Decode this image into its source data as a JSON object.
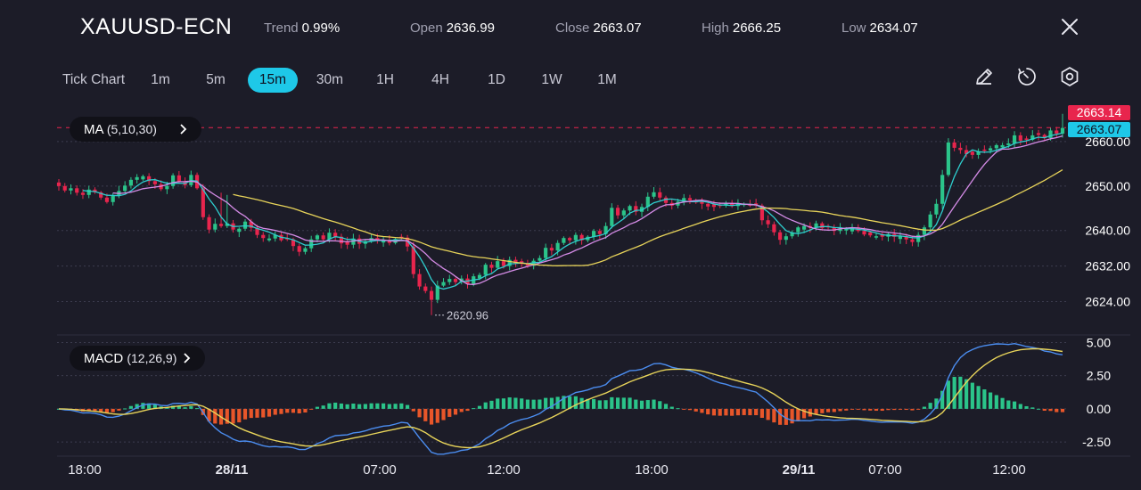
{
  "header": {
    "symbol": "XAUUSD-ECN",
    "stats": [
      {
        "label": "Trend",
        "value": "0.99%"
      },
      {
        "label": "Open",
        "value": "2636.99"
      },
      {
        "label": "Close",
        "value": "2663.07"
      },
      {
        "label": "High",
        "value": "2666.25"
      },
      {
        "label": "Low",
        "value": "2634.07"
      }
    ],
    "close_icon": "close-icon"
  },
  "timeframes": {
    "items": [
      "Tick Chart",
      "1m",
      "5m",
      "15m",
      "30m",
      "1H",
      "4H",
      "1D",
      "1W",
      "1M"
    ],
    "selected": "15m"
  },
  "toolbar": {
    "icons": [
      "pencil-icon",
      "timer-icon",
      "settings-icon"
    ]
  },
  "indicators": {
    "ma": {
      "name": "MA",
      "params": "(5,10,30)"
    },
    "macd": {
      "name": "MACD",
      "params": "(12,26,9)"
    }
  },
  "price_tags": {
    "current_high": "2663.14",
    "current_close": "2663.07",
    "low_marker": "2620.96"
  },
  "colors": {
    "background": "#1c1c28",
    "up": "#2bc48a",
    "down": "#e8254d",
    "accent": "#1ec8e8",
    "ma5": "#2ecfcf",
    "ma10": "#d48be6",
    "ma30": "#e8d45a",
    "macd_line": "#4b8df0",
    "signal_line": "#e8d45a",
    "hist_pos": "#2bc48a",
    "hist_neg": "#e8562a"
  },
  "chart_data": [
    {
      "type": "candlestick",
      "title": "XAUUSD-ECN",
      "xlabel": "",
      "ylabel": "",
      "x_tick_labels": [
        "18:00",
        "28/11",
        "07:00",
        "12:00",
        "18:00",
        "29/11",
        "07:00",
        "12:00"
      ],
      "y_ticks": [
        2624.0,
        2632.0,
        2640.0,
        2650.0,
        2660.0
      ],
      "y_tick_labels": [
        "2624.00",
        "2632.00",
        "2640.00",
        "2650.00",
        "2660.00"
      ],
      "ylim": [
        2618.5,
        2668.2
      ],
      "grid": true,
      "series_ma": [
        {
          "name": "MA5",
          "period": 5
        },
        {
          "name": "MA10",
          "period": 10
        },
        {
          "name": "MA30",
          "period": 30
        }
      ],
      "closes": [
        2650.0,
        2649.0,
        2649.5,
        2648.5,
        2648.0,
        2649.2,
        2648.6,
        2647.4,
        2646.4,
        2647.8,
        2648.9,
        2650.1,
        2651.4,
        2652.0,
        2652.2,
        2651.1,
        2650.4,
        2649.3,
        2650.0,
        2652.4,
        2651.0,
        2650.2,
        2652.5,
        2649.5,
        2643.0,
        2640.2,
        2641.5,
        2641.0,
        2641.6,
        2640.2,
        2640.4,
        2642.0,
        2640.6,
        2639.0,
        2638.3,
        2638.2,
        2639.0,
        2637.8,
        2638.0,
        2636.5,
        2635.2,
        2636.0,
        2638.0,
        2638.9,
        2638.0,
        2639.5,
        2638.6,
        2637.1,
        2636.8,
        2638.2,
        2637.0,
        2637.6,
        2638.3,
        2637.8,
        2637.9,
        2637.2,
        2638.1,
        2638.4,
        2636.4,
        2630.2,
        2627.4,
        2626.4,
        2624.4,
        2627.6,
        2628.4,
        2629.1,
        2628.4,
        2629.2,
        2628.0,
        2629.7,
        2630.0,
        2632.3,
        2631.6,
        2633.1,
        2632.0,
        2633.4,
        2632.6,
        2632.5,
        2632.1,
        2633.2,
        2633.8,
        2636.1,
        2635.5,
        2637.2,
        2638.3,
        2637.8,
        2639.0,
        2637.8,
        2638.6,
        2639.9,
        2639.2,
        2641.0,
        2645.1,
        2643.4,
        2644.5,
        2645.5,
        2644.2,
        2645.3,
        2647.6,
        2648.6,
        2647.4,
        2646.2,
        2645.6,
        2646.5,
        2647.3,
        2646.8,
        2646.3,
        2646.0,
        2645.4,
        2645.3,
        2645.7,
        2646.2,
        2645.5,
        2646.2,
        2646.0,
        2645.6,
        2645.6,
        2642.3,
        2641.4,
        2639.6,
        2637.9,
        2638.7,
        2639.6,
        2640.7,
        2641.0,
        2640.6,
        2641.6,
        2640.5,
        2640.7,
        2639.9,
        2640.5,
        2640.3,
        2640.7,
        2639.9,
        2639.1,
        2638.9,
        2638.7,
        2638.6,
        2639.2,
        2638.6,
        2638.7,
        2638.0,
        2637.4,
        2639.0,
        2640.7,
        2643.6,
        2646.0,
        2652.5,
        2659.8,
        2658.6,
        2658.1,
        2657.2,
        2657.0,
        2657.7,
        2658.0,
        2658.5,
        2659.2,
        2659.2,
        2659.6,
        2661.4,
        2660.2,
        2660.4,
        2661.4,
        2661.5,
        2660.8,
        2662.5,
        2661.8,
        2663.07
      ]
    },
    {
      "type": "bar",
      "title": "MACD",
      "xlabel": "",
      "ylabel": "",
      "y_ticks": [
        -2.5,
        0.0,
        2.5,
        5.0
      ],
      "y_tick_labels": [
        "-2.50",
        "0.00",
        "2.50",
        "5.00"
      ],
      "ylim": [
        -3.3,
        5.3
      ],
      "grid": true,
      "series": [
        {
          "name": "MACD",
          "period": 12
        },
        {
          "name": "Signal",
          "period": 9
        },
        {
          "name": "Histogram"
        }
      ]
    }
  ]
}
